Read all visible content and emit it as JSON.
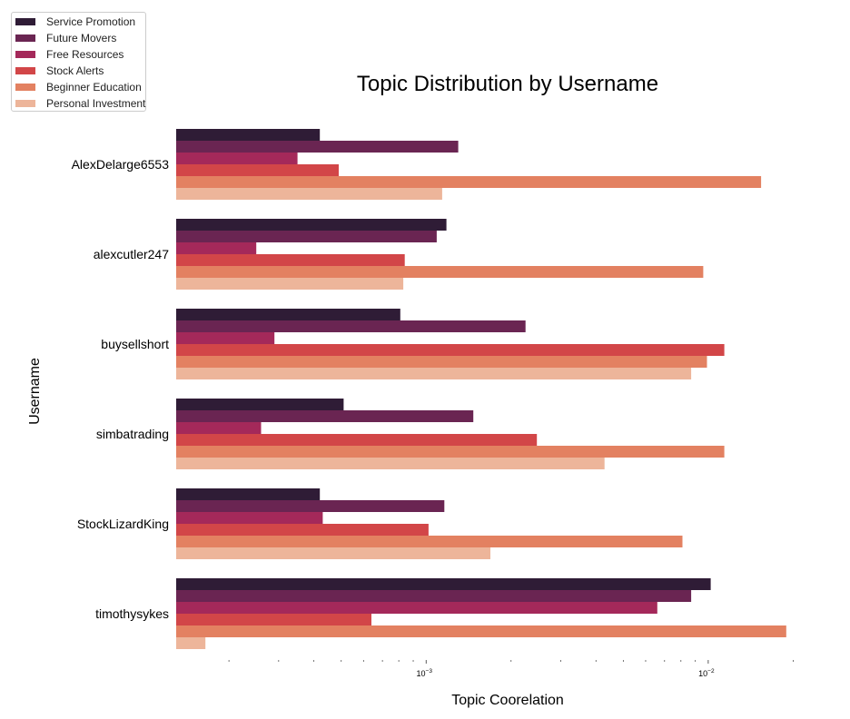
{
  "chart_data": {
    "type": "bar",
    "orientation": "horizontal",
    "title": "Topic Distribution by Username",
    "xlabel": "Topic Coorelation",
    "ylabel": "Username",
    "x_scale": "log",
    "xlim": [
      0.00013,
      0.024
    ],
    "x_ticks": [
      {
        "value": 0.001,
        "base": "10",
        "exp": "−3"
      },
      {
        "value": 0.01,
        "base": "10",
        "exp": "−2"
      }
    ],
    "minor_ticks": [
      0.0002,
      0.0003,
      0.0004,
      0.0005,
      0.0006,
      0.0007,
      0.0008,
      0.0009,
      0.002,
      0.003,
      0.004,
      0.005,
      0.006,
      0.007,
      0.008,
      0.009,
      0.02
    ],
    "categories": [
      "AlexDelarge6553",
      "alexcutler247",
      "buysellshort",
      "simbatrading",
      "StockLizardKing",
      "timothysykes"
    ],
    "series": [
      {
        "name": "Service Promotion",
        "color": "#2f1c36",
        "values": [
          0.00042,
          0.00118,
          0.00081,
          0.00051,
          0.00042,
          0.0102
        ]
      },
      {
        "name": "Future Movers",
        "color": "#6a2552",
        "values": [
          0.0013,
          0.00109,
          0.00225,
          0.00147,
          0.00116,
          0.0087
        ]
      },
      {
        "name": "Free Resources",
        "color": "#a4295a",
        "values": [
          0.00035,
          0.00025,
          0.00029,
          0.00026,
          0.00043,
          0.0066
        ]
      },
      {
        "name": "Stock Alerts",
        "color": "#d24648",
        "values": [
          0.00049,
          0.00084,
          0.0114,
          0.00247,
          0.00102,
          0.00064
        ]
      },
      {
        "name": "Beginner Education",
        "color": "#e38161",
        "values": [
          0.0154,
          0.0096,
          0.0099,
          0.0114,
          0.0081,
          0.0189
        ]
      },
      {
        "name": "Personal Investment",
        "color": "#edb59a",
        "values": [
          0.00114,
          0.00083,
          0.0087,
          0.00429,
          0.00169,
          0.000165
        ]
      }
    ],
    "grid": false,
    "legend_position": "top-left"
  }
}
